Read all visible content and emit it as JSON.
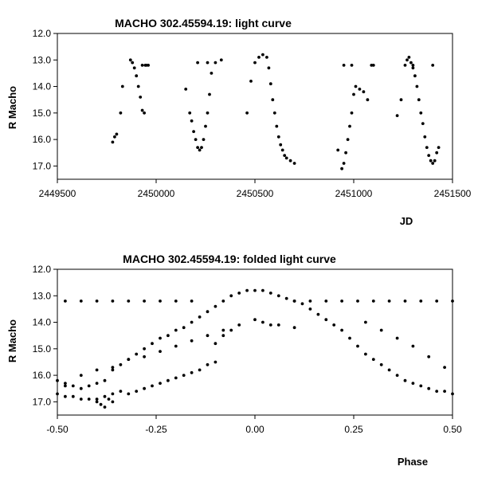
{
  "chart_data": [
    {
      "type": "scatter",
      "title": "MACHO 302.45594.19: light curve",
      "xlabel": "JD",
      "ylabel": "R Macho",
      "xlim": [
        2449500,
        2451500
      ],
      "ylim": [
        12.0,
        17.5
      ],
      "y_inverted": true,
      "grid": false,
      "xticks": [
        "2449500",
        "2450000",
        "2450500",
        "2451000",
        "2451500"
      ],
      "yticks": [
        "12.0",
        "13.0",
        "14.0",
        "15.0",
        "16.0",
        "17.0"
      ],
      "series": [
        {
          "x": [
            2449780,
            2449790,
            2449800,
            2449820,
            2449830,
            2449870,
            2449880,
            2449890,
            2449900,
            2449910,
            2449920,
            2449930,
            2449940,
            2449950,
            2449960,
            2449930,
            2449945,
            2450150,
            2450170,
            2450180,
            2450190,
            2450200,
            2450210,
            2450220,
            2450230,
            2450240,
            2450250,
            2450260,
            2450270,
            2450280,
            2450300,
            2450330,
            2450210,
            2450260,
            2450460,
            2450480,
            2450500,
            2450520,
            2450540,
            2450560,
            2450570,
            2450580,
            2450590,
            2450600,
            2450610,
            2450620,
            2450630,
            2450640,
            2450650,
            2450660,
            2450680,
            2450700,
            2450920,
            2450940,
            2450950,
            2450960,
            2450970,
            2450980,
            2450990,
            2451000,
            2451010,
            2451030,
            2451050,
            2451070,
            2451090,
            2451100,
            2450950,
            2450990,
            2451220,
            2451240,
            2451260,
            2451270,
            2451280,
            2451290,
            2451300,
            2451310,
            2451320,
            2451330,
            2451340,
            2451350,
            2451360,
            2451370,
            2451380,
            2451390,
            2451400,
            2451410,
            2451420,
            2451430,
            2451300,
            2451400
          ],
          "y": [
            16.1,
            15.9,
            15.8,
            15.0,
            14.0,
            13.0,
            13.1,
            13.3,
            13.6,
            14.0,
            14.4,
            14.9,
            15.0,
            13.2,
            13.2,
            13.2,
            13.2,
            14.1,
            15.0,
            15.3,
            15.7,
            16.0,
            16.3,
            16.4,
            16.3,
            16.0,
            15.5,
            15.0,
            14.3,
            13.5,
            13.1,
            13.0,
            13.1,
            13.1,
            15.0,
            13.8,
            13.1,
            12.9,
            12.8,
            12.9,
            13.3,
            13.9,
            14.5,
            15.0,
            15.5,
            15.9,
            16.2,
            16.4,
            16.6,
            16.7,
            16.8,
            16.9,
            16.4,
            17.1,
            16.9,
            16.5,
            16.0,
            15.5,
            15.0,
            14.3,
            14.0,
            14.1,
            14.2,
            14.5,
            13.2,
            13.2,
            13.2,
            13.2,
            15.1,
            14.5,
            13.2,
            13.0,
            12.9,
            13.1,
            13.3,
            13.6,
            14.0,
            14.5,
            15.0,
            15.4,
            15.9,
            16.3,
            16.6,
            16.8,
            16.9,
            16.8,
            16.5,
            16.3,
            13.2,
            13.2
          ]
        }
      ]
    },
    {
      "type": "scatter",
      "title": "MACHO 302.45594.19: folded light curve",
      "xlabel": "Phase",
      "ylabel": "R Macho",
      "xlim": [
        -0.5,
        0.5
      ],
      "ylim": [
        12.0,
        17.5
      ],
      "y_inverted": true,
      "grid": false,
      "xticks": [
        "-0.50",
        "-0.25",
        "0.00",
        "0.25",
        "0.50"
      ],
      "yticks": [
        "12.0",
        "13.0",
        "14.0",
        "15.0",
        "16.0",
        "17.0"
      ],
      "series": [
        {
          "x": [
            -0.5,
            -0.48,
            -0.46,
            -0.44,
            -0.42,
            -0.4,
            -0.38,
            -0.36,
            -0.34,
            -0.32,
            -0.3,
            -0.28,
            -0.26,
            -0.24,
            -0.22,
            -0.2,
            -0.18,
            -0.16,
            -0.14,
            -0.12,
            -0.1,
            -0.08,
            -0.06,
            -0.04,
            -0.02,
            0.0,
            0.02,
            0.04,
            0.06,
            0.08,
            0.1,
            0.12,
            0.14,
            0.16,
            0.18,
            0.2,
            0.22,
            0.24,
            0.26,
            0.28,
            0.3,
            0.32,
            0.34,
            0.36,
            0.38,
            0.4,
            0.42,
            0.44,
            0.46,
            0.48,
            0.5,
            -0.48,
            -0.44,
            -0.4,
            -0.36,
            -0.32,
            -0.28,
            -0.24,
            -0.2,
            -0.16,
            -0.1,
            -0.08,
            -0.06,
            -0.04,
            0.0,
            0.02,
            0.04,
            0.06,
            0.1,
            0.1,
            0.14,
            0.18,
            0.22,
            0.26,
            0.3,
            0.34,
            0.38,
            0.42,
            0.46,
            0.5,
            -0.5,
            -0.48,
            -0.46,
            -0.44,
            -0.42,
            -0.4,
            -0.38,
            -0.36,
            -0.34,
            -0.32,
            -0.3,
            -0.28,
            -0.26,
            -0.24,
            -0.22,
            -0.2,
            -0.18,
            -0.16,
            -0.14,
            -0.12,
            -0.1,
            -0.48,
            -0.44,
            -0.4,
            -0.36,
            -0.32,
            -0.28,
            -0.24,
            -0.2,
            -0.16,
            -0.12,
            -0.08,
            0.28,
            0.32,
            0.36,
            0.4,
            0.44,
            0.48,
            -0.4,
            -0.39,
            -0.38,
            -0.37,
            -0.36
          ],
          "y": [
            16.2,
            16.4,
            16.4,
            16.5,
            16.4,
            16.3,
            16.2,
            15.8,
            15.6,
            15.4,
            15.2,
            15.0,
            14.8,
            14.6,
            14.5,
            14.3,
            14.2,
            14.0,
            13.8,
            13.6,
            13.4,
            13.2,
            13.0,
            12.9,
            12.8,
            12.8,
            12.8,
            12.9,
            13.0,
            13.1,
            13.2,
            13.3,
            13.5,
            13.7,
            13.9,
            14.1,
            14.3,
            14.6,
            14.9,
            15.2,
            15.4,
            15.6,
            15.8,
            16.0,
            16.2,
            16.3,
            16.4,
            16.5,
            16.6,
            16.6,
            16.7,
            13.2,
            13.2,
            13.2,
            13.2,
            13.2,
            13.2,
            13.2,
            13.2,
            13.2,
            14.8,
            14.5,
            14.3,
            14.1,
            13.9,
            14.0,
            14.1,
            14.1,
            14.2,
            13.2,
            13.2,
            13.2,
            13.2,
            13.2,
            13.2,
            13.2,
            13.2,
            13.2,
            13.2,
            13.2,
            16.7,
            16.8,
            16.8,
            16.9,
            16.9,
            16.9,
            16.8,
            16.7,
            16.6,
            16.7,
            16.6,
            16.5,
            16.4,
            16.3,
            16.2,
            16.1,
            16.0,
            15.9,
            15.8,
            15.6,
            15.5,
            16.3,
            16.0,
            15.8,
            15.7,
            15.4,
            15.3,
            15.1,
            14.9,
            14.7,
            14.5,
            14.3,
            14.0,
            14.3,
            14.6,
            14.9,
            15.3,
            15.7,
            17.0,
            17.1,
            17.2,
            16.9,
            17.0
          ]
        }
      ]
    }
  ]
}
